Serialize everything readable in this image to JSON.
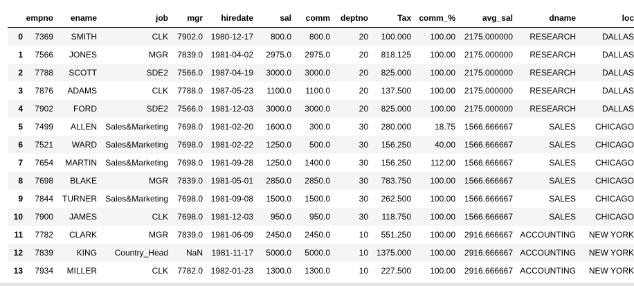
{
  "table": {
    "columns": [
      "",
      "empno",
      "ename",
      "job",
      "mgr",
      "hiredate",
      "sal",
      "comm",
      "deptno",
      "Tax",
      "comm_%",
      "avg_sal",
      "dname",
      "loc"
    ],
    "rows": [
      [
        "0",
        "7369",
        "SMITH",
        "CLK",
        "7902.0",
        "1980-12-17",
        "800.0",
        "800.0",
        "20",
        "100.000",
        "100.00",
        "2175.000000",
        "RESEARCH",
        "DALLAS"
      ],
      [
        "1",
        "7566",
        "JONES",
        "MGR",
        "7839.0",
        "1981-04-02",
        "2975.0",
        "2975.0",
        "20",
        "818.125",
        "100.00",
        "2175.000000",
        "RESEARCH",
        "DALLAS"
      ],
      [
        "2",
        "7788",
        "SCOTT",
        "SDE2",
        "7566.0",
        "1987-04-19",
        "3000.0",
        "3000.0",
        "20",
        "825.000",
        "100.00",
        "2175.000000",
        "RESEARCH",
        "DALLAS"
      ],
      [
        "3",
        "7876",
        "ADAMS",
        "CLK",
        "7788.0",
        "1987-05-23",
        "1100.0",
        "1100.0",
        "20",
        "137.500",
        "100.00",
        "2175.000000",
        "RESEARCH",
        "DALLAS"
      ],
      [
        "4",
        "7902",
        "FORD",
        "SDE2",
        "7566.0",
        "1981-12-03",
        "3000.0",
        "3000.0",
        "20",
        "825.000",
        "100.00",
        "2175.000000",
        "RESEARCH",
        "DALLAS"
      ],
      [
        "5",
        "7499",
        "ALLEN",
        "Sales&Marketing",
        "7698.0",
        "1981-02-20",
        "1600.0",
        "300.0",
        "30",
        "280.000",
        "18.75",
        "1566.666667",
        "SALES",
        "CHICAGO"
      ],
      [
        "6",
        "7521",
        "WARD",
        "Sales&Marketing",
        "7698.0",
        "1981-02-22",
        "1250.0",
        "500.0",
        "30",
        "156.250",
        "40.00",
        "1566.666667",
        "SALES",
        "CHICAGO"
      ],
      [
        "7",
        "7654",
        "MARTIN",
        "Sales&Marketing",
        "7698.0",
        "1981-09-28",
        "1250.0",
        "1400.0",
        "30",
        "156.250",
        "112.00",
        "1566.666667",
        "SALES",
        "CHICAGO"
      ],
      [
        "8",
        "7698",
        "BLAKE",
        "MGR",
        "7839.0",
        "1981-05-01",
        "2850.0",
        "2850.0",
        "30",
        "783.750",
        "100.00",
        "1566.666667",
        "SALES",
        "CHICAGO"
      ],
      [
        "9",
        "7844",
        "TURNER",
        "Sales&Marketing",
        "7698.0",
        "1981-09-08",
        "1500.0",
        "1500.0",
        "30",
        "262.500",
        "100.00",
        "1566.666667",
        "SALES",
        "CHICAGO"
      ],
      [
        "10",
        "7900",
        "JAMES",
        "CLK",
        "7698.0",
        "1981-12-03",
        "950.0",
        "950.0",
        "30",
        "118.750",
        "100.00",
        "1566.666667",
        "SALES",
        "CHICAGO"
      ],
      [
        "11",
        "7782",
        "CLARK",
        "MGR",
        "7839.0",
        "1981-06-09",
        "2450.0",
        "2450.0",
        "10",
        "551.250",
        "100.00",
        "2916.666667",
        "ACCOUNTING",
        "NEW YORK"
      ],
      [
        "12",
        "7839",
        "KING",
        "Country_Head",
        "NaN",
        "1981-11-17",
        "5000.0",
        "5000.0",
        "10",
        "1375.000",
        "100.00",
        "2916.666667",
        "ACCOUNTING",
        "NEW YORK"
      ],
      [
        "13",
        "7934",
        "MILLER",
        "CLK",
        "7782.0",
        "1982-01-23",
        "1300.0",
        "1300.0",
        "10",
        "227.500",
        "100.00",
        "2916.666667",
        "ACCOUNTING",
        "NEW YORK"
      ]
    ]
  },
  "colors": {
    "stripe": "#f5f5f5",
    "header_rule": "#000000",
    "scrollbar_track": "#e6e6e6"
  }
}
